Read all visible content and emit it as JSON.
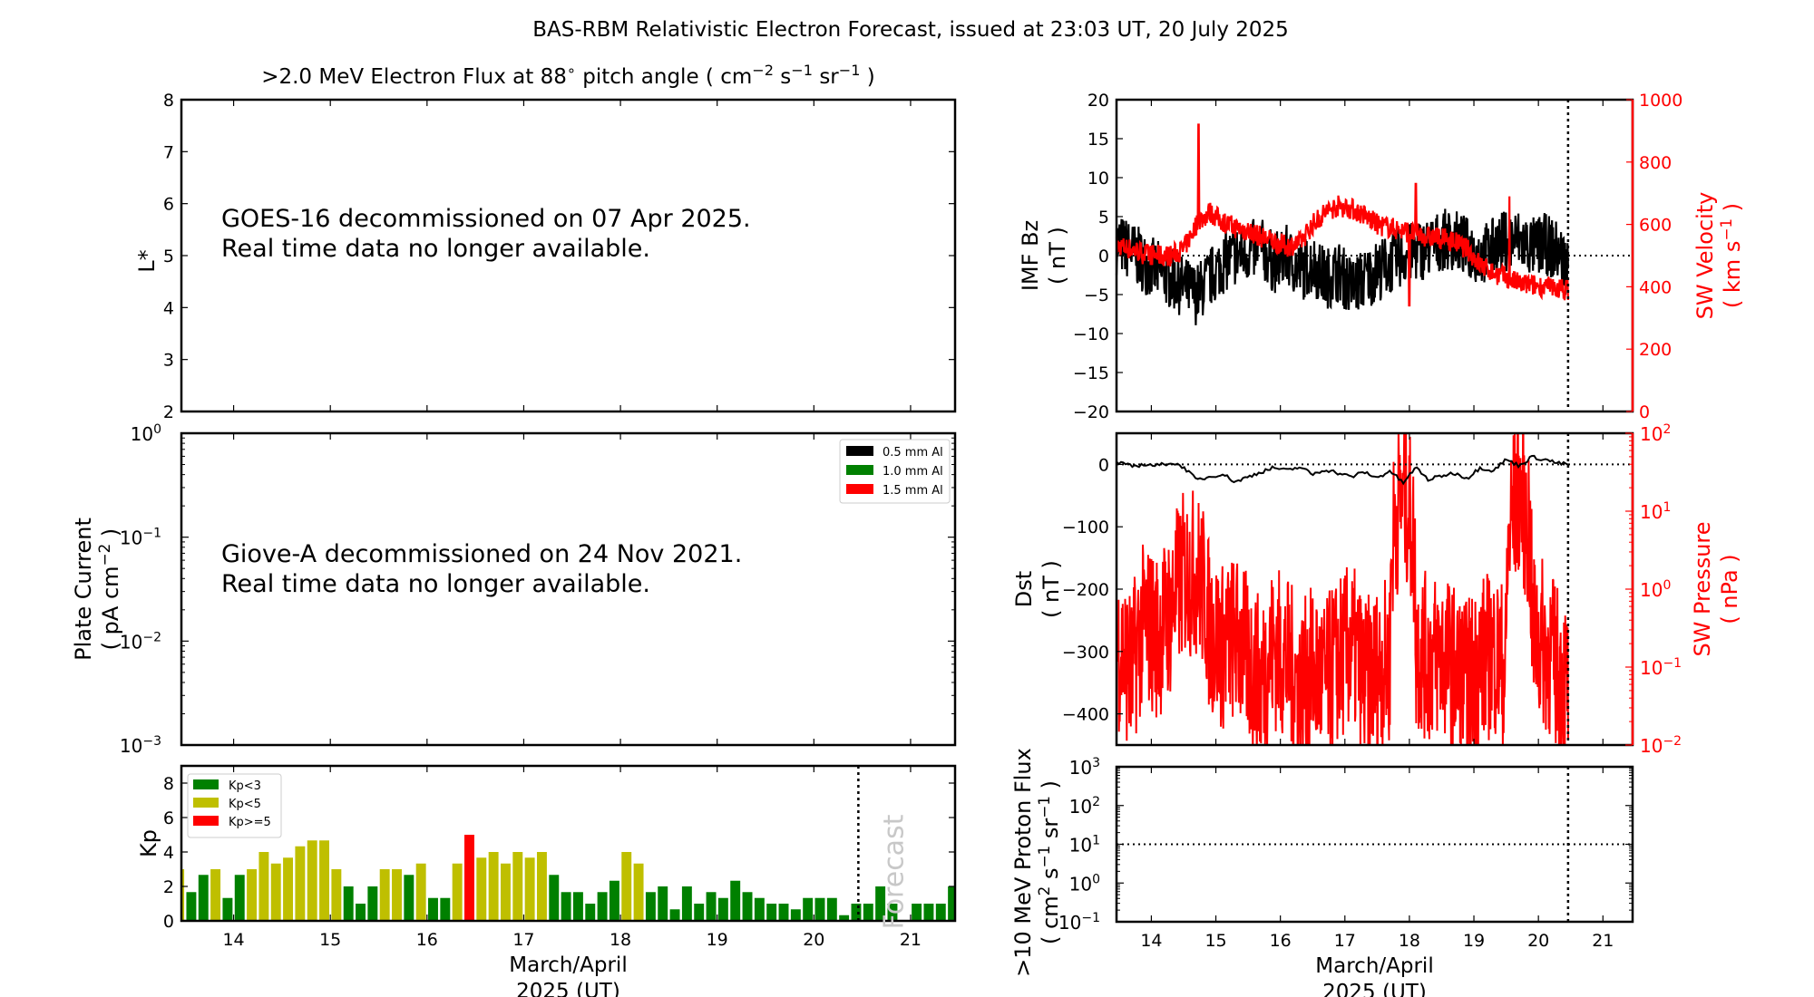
{
  "figure": {
    "title": "BAS-RBM Relativistic Electron Forecast, issued at 23:03 UT, 20 July 2025",
    "xlabel_line1": "March/April",
    "xlabel_line2": "2025 (UT)"
  },
  "chart_data": [
    {
      "id": "electron-flux",
      "type": "heatmap",
      "title": ">2.0 MeV Electron Flux at 88° pitch angle ( cm⁻² s⁻¹ sr⁻¹ )",
      "title_parts": [
        ">2.0 MeV Electron Flux at 88",
        "∘",
        " pitch angle ( cm",
        "−2",
        " s",
        "−1",
        " sr",
        "−1",
        " )"
      ],
      "ylabel": "L*",
      "ylim": [
        2,
        8
      ],
      "yticks": [
        "2",
        "3",
        "4",
        "5",
        "6",
        "7",
        "8"
      ],
      "xlim": [
        13.46,
        21.46
      ],
      "annotation": [
        "GOES-16 decommissioned on 07 Apr 2025.",
        "Real time data no longer available."
      ],
      "values": []
    },
    {
      "id": "plate-current",
      "type": "line",
      "ylabel": "Plate Current",
      "ylabel_units": "( pA cm⁻² )",
      "ylabel_units_parts": [
        "( pA cm",
        "−2",
        " )"
      ],
      "yscale": "log",
      "ylim": [
        0.001,
        1
      ],
      "yticks": [
        {
          "base": "10",
          "exp": "0"
        },
        {
          "base": "10",
          "exp": "−1"
        },
        {
          "base": "10",
          "exp": "−2"
        },
        {
          "base": "10",
          "exp": "−3"
        }
      ],
      "xlim": [
        13.46,
        21.46
      ],
      "legend": {
        "placement": "top-right",
        "entries": [
          {
            "label": "0.5 mm Al",
            "color": "#000000"
          },
          {
            "label": "1.0 mm Al",
            "color": "#008000"
          },
          {
            "label": "1.5 mm Al",
            "color": "#ff0000"
          }
        ]
      },
      "annotation": [
        "Giove-A decommissioned on 24 Nov 2021.",
        "Real time data no longer available."
      ],
      "series": []
    },
    {
      "id": "kp",
      "type": "bar",
      "ylabel": "Kp",
      "ylim": [
        0,
        9
      ],
      "yticks": [
        "0",
        "2",
        "4",
        "6",
        "8"
      ],
      "xlim": [
        13.46,
        21.46
      ],
      "xticks": [
        "14",
        "15",
        "16",
        "17",
        "18",
        "19",
        "20",
        "21"
      ],
      "bar_interval_days": 0.125,
      "x_start": 13.375,
      "values": [
        3,
        1.67,
        2.67,
        3,
        1.33,
        2.67,
        3,
        4,
        3.33,
        3.67,
        4.33,
        4.67,
        4.67,
        3,
        2,
        1,
        2,
        3,
        3,
        2.67,
        3.33,
        1.33,
        1.33,
        3.33,
        5,
        3.67,
        4,
        3.33,
        4,
        3.67,
        4,
        2.67,
        1.67,
        1.67,
        1,
        1.67,
        2.33,
        4,
        3.33,
        1.67,
        2,
        0.67,
        2,
        1,
        1.67,
        1.33,
        2.33,
        1.67,
        1.33,
        1,
        1,
        0.67,
        1.33,
        1.33,
        1.33,
        0.33,
        1,
        1,
        2,
        1,
        0,
        1,
        1,
        1,
        2
      ],
      "forecast_start": 20.46,
      "forecast_label": "Forecast",
      "legend": {
        "placement": "top-left",
        "entries": [
          {
            "label": "Kp<3",
            "color": "#008000",
            "max": 3
          },
          {
            "label": "Kp<5",
            "color": "#bfbf00",
            "max": 5
          },
          {
            "label": "Kp>=5",
            "color": "#ff0000",
            "max": 99
          }
        ]
      }
    },
    {
      "id": "imf-sw-velocity",
      "type": "line",
      "ylabel": "IMF Bz",
      "ylabel_units": "( nT )",
      "ylim": [
        -20,
        20
      ],
      "yticks": [
        "20",
        "15",
        "10",
        "5",
        "0",
        "−5",
        "−10",
        "−15",
        "−20"
      ],
      "y2label": "SW Velocity",
      "y2label_units_parts": [
        "( km s",
        "−1",
        " )"
      ],
      "y2lim": [
        0,
        1000
      ],
      "y2ticks": [
        "1000",
        "800",
        "600",
        "400",
        "200",
        "0"
      ],
      "xlim": [
        13.46,
        21.46
      ],
      "forecast_start": 20.46,
      "reference_line": 0,
      "series": [
        {
          "name": "IMF Bz",
          "color": "#000000",
          "axis": "left",
          "x": [
            13.5,
            13.7,
            13.9,
            14.1,
            14.3,
            14.5,
            14.7,
            14.9,
            15.1,
            15.3,
            15.5,
            15.7,
            15.9,
            16.1,
            16.3,
            16.5,
            16.7,
            16.9,
            17.1,
            17.3,
            17.5,
            17.7,
            17.9,
            18.1,
            18.3,
            18.5,
            18.7,
            18.9,
            19.1,
            19.3,
            19.5,
            19.7,
            19.9,
            20.1,
            20.3,
            20.46
          ],
          "y": [
            1.5,
            0.5,
            -1,
            -2,
            -3,
            -4,
            -5,
            -3,
            -1,
            0,
            0.5,
            1,
            -1,
            0,
            -2,
            -1,
            -3,
            -2,
            -4,
            -3,
            -2,
            -1,
            0,
            0.5,
            1,
            2,
            2,
            1,
            0,
            1,
            2,
            2,
            1,
            1.5,
            0.5,
            -1.5
          ]
        },
        {
          "name": "SW Velocity",
          "color": "#ff0000",
          "axis": "right",
          "x": [
            13.5,
            13.7,
            13.9,
            14.1,
            14.3,
            14.5,
            14.7,
            14.9,
            15.1,
            15.3,
            15.5,
            15.7,
            15.9,
            16.1,
            16.3,
            16.5,
            16.7,
            16.9,
            17.1,
            17.3,
            17.5,
            17.7,
            17.9,
            18.1,
            18.3,
            18.5,
            18.7,
            18.9,
            19.1,
            19.3,
            19.5,
            19.7,
            19.9,
            20.1,
            20.3,
            20.46
          ],
          "y": [
            530,
            520,
            505,
            500,
            500,
            520,
            600,
            640,
            610,
            590,
            580,
            560,
            545,
            530,
            540,
            600,
            640,
            660,
            650,
            630,
            600,
            590,
            580,
            570,
            560,
            555,
            545,
            520,
            470,
            445,
            430,
            410,
            405,
            400,
            395,
            390
          ]
        }
      ]
    },
    {
      "id": "dst-sw-pressure",
      "type": "line",
      "ylabel": "Dst",
      "ylabel_units": "( nT )",
      "ylim": [
        -450,
        50
      ],
      "yticks": [
        "0",
        "−100",
        "−200",
        "−300",
        "−400"
      ],
      "y2label": "SW Pressure",
      "y2label_units": "( nPa )",
      "y2scale": "log",
      "y2lim": [
        0.01,
        100
      ],
      "y2ticks": [
        {
          "base": "10",
          "exp": "2"
        },
        {
          "base": "10",
          "exp": "1"
        },
        {
          "base": "10",
          "exp": "0"
        },
        {
          "base": "10",
          "exp": "−1"
        },
        {
          "base": "10",
          "exp": "−2"
        }
      ],
      "xlim": [
        13.46,
        21.46
      ],
      "forecast_start": 20.46,
      "reference_line": 0,
      "series": [
        {
          "name": "Dst",
          "color": "#000000",
          "axis": "left",
          "x": [
            13.5,
            13.7,
            13.9,
            14.1,
            14.3,
            14.5,
            14.7,
            14.9,
            15.1,
            15.3,
            15.5,
            15.7,
            15.9,
            16.1,
            16.3,
            16.5,
            16.7,
            16.9,
            17.1,
            17.3,
            17.5,
            17.7,
            17.9,
            18.1,
            18.3,
            18.5,
            18.7,
            18.9,
            19.1,
            19.3,
            19.5,
            19.7,
            19.9,
            20.1,
            20.3,
            20.46
          ],
          "y": [
            2,
            -3,
            0,
            -2,
            3,
            -4,
            -25,
            -20,
            -15,
            -28,
            -20,
            -12,
            -5,
            -10,
            -4,
            -16,
            -8,
            -14,
            -20,
            -12,
            -22,
            -10,
            -30,
            -5,
            -25,
            -18,
            -14,
            -22,
            -5,
            -10,
            8,
            -2,
            12,
            8,
            2,
            0
          ]
        },
        {
          "name": "SW Pressure",
          "color": "#ff0000",
          "axis": "right",
          "x": [
            13.5,
            13.7,
            13.9,
            14.1,
            14.3,
            14.5,
            14.7,
            14.9,
            15.1,
            15.3,
            15.5,
            15.7,
            15.9,
            16.1,
            16.3,
            16.5,
            16.7,
            16.9,
            17.1,
            17.3,
            17.5,
            17.7,
            17.9,
            18.1,
            18.3,
            18.5,
            18.7,
            18.9,
            19.1,
            19.3,
            19.5,
            19.7,
            19.9,
            20.1,
            20.3,
            20.46
          ],
          "y": [
            0.3,
            0.12,
            0.6,
            0.4,
            0.8,
            2.5,
            2.8,
            0.5,
            0.3,
            0.4,
            0.2,
            0.1,
            0.3,
            0.2,
            0.08,
            0.15,
            0.1,
            0.2,
            0.3,
            0.1,
            0.15,
            0.2,
            30,
            0.3,
            0.2,
            0.25,
            0.15,
            0.1,
            0.2,
            0.25,
            0.15,
            30,
            0.5,
            0.3,
            0.15,
            0.1
          ]
        }
      ]
    },
    {
      "id": "proton-flux",
      "type": "line",
      "ylabel": ">10 MeV Proton Flux",
      "ylabel_units_parts": [
        "( cm",
        "2",
        " s",
        "−1",
        " sr",
        "−1",
        " )"
      ],
      "yscale": "log",
      "ylim": [
        0.1,
        1000
      ],
      "yticks": [
        {
          "base": "10",
          "exp": "3"
        },
        {
          "base": "10",
          "exp": "2"
        },
        {
          "base": "10",
          "exp": "1"
        },
        {
          "base": "10",
          "exp": "0"
        },
        {
          "base": "10",
          "exp": "−1"
        }
      ],
      "xlim": [
        13.46,
        21.46
      ],
      "xticks": [
        "14",
        "15",
        "16",
        "17",
        "18",
        "19",
        "20",
        "21"
      ],
      "forecast_start": 20.46,
      "reference_line": 10,
      "series": []
    }
  ]
}
